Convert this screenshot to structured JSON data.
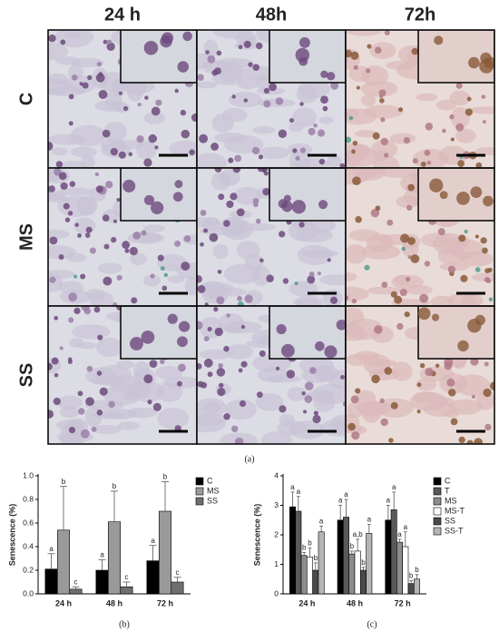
{
  "grid": {
    "columns": [
      "24 h",
      "48h",
      "72h"
    ],
    "rows": [
      "C",
      "MS",
      "SS"
    ],
    "label": "(a)"
  },
  "chart_data": [
    {
      "type": "bar",
      "label": "(b)",
      "y_label": "Senescence (%)",
      "categories": [
        "24 h",
        "48 h",
        "72 h"
      ],
      "ylim": [
        0,
        1
      ],
      "yticks": [
        {
          "value": 0,
          "label": "0.0"
        },
        0.2,
        0.4,
        0.6,
        0.8,
        {
          "value": 1,
          "label": "1.0"
        }
      ],
      "legend": "top-right",
      "series": [
        {
          "name": "C",
          "color": "#000000",
          "values": [
            0.21,
            0.2,
            0.28
          ],
          "errors": [
            0.13,
            0.09,
            0.13
          ],
          "letters": [
            "a",
            "a",
            "a"
          ]
        },
        {
          "name": "MS",
          "color": "#9a9a9a",
          "values": [
            0.54,
            0.61,
            0.7
          ],
          "errors": [
            0.37,
            0.26,
            0.25
          ],
          "letters": [
            "b",
            "b",
            "b"
          ]
        },
        {
          "name": "SS",
          "color": "#6e6e6e",
          "values": [
            0.04,
            0.06,
            0.1
          ],
          "errors": [
            0.02,
            0.04,
            0.04
          ],
          "letters": [
            "c",
            "c",
            "c"
          ]
        }
      ]
    },
    {
      "type": "bar",
      "label": "(c)",
      "y_label": "Senescence (%)",
      "categories": [
        "24 h",
        "48 h",
        "72 h"
      ],
      "ylim": [
        0,
        4
      ],
      "yticks": [
        0,
        1,
        2,
        3,
        4
      ],
      "legend": "top-right",
      "series": [
        {
          "name": "C",
          "color": "#000000",
          "values": [
            2.95,
            2.5,
            2.5
          ],
          "errors": [
            0.5,
            0.5,
            0.5
          ],
          "letters": [
            "a",
            "a",
            "a"
          ]
        },
        {
          "name": "T",
          "color": "#595959",
          "values": [
            2.8,
            2.6,
            2.85
          ],
          "errors": [
            0.5,
            0.6,
            0.6
          ],
          "letters": [
            "a",
            "a",
            "a"
          ]
        },
        {
          "name": "MS",
          "color": "#8c8c8c",
          "values": [
            1.3,
            1.35,
            1.75
          ],
          "errors": [
            0.1,
            0.1,
            0.1
          ],
          "letters": [
            "b",
            "b",
            "a"
          ]
        },
        {
          "name": "MS-T",
          "color": "#ffffff",
          "values": [
            1.25,
            1.45,
            1.6
          ],
          "errors": [
            0.3,
            0.4,
            0.5
          ],
          "letters": [
            "b",
            "a,b",
            "a"
          ]
        },
        {
          "name": "SS",
          "color": "#4a4a4a",
          "values": [
            0.8,
            0.8,
            0.35
          ],
          "errors": [
            0.25,
            0.1,
            0.1
          ],
          "letters": [
            "b",
            "b",
            "b"
          ]
        },
        {
          "name": "SS-T",
          "color": "#b5b5b5",
          "values": [
            2.1,
            2.05,
            0.5
          ],
          "errors": [
            0.2,
            0.3,
            0.15
          ],
          "letters": [
            "a",
            "a",
            "b"
          ]
        }
      ]
    }
  ]
}
